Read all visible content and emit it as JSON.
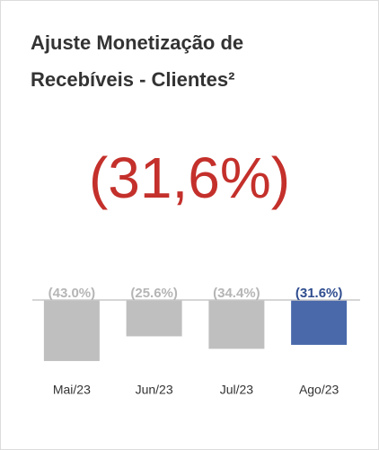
{
  "chart_data": {
    "type": "bar",
    "title": "Ajuste Monetização de Recebíveis - Clientes²",
    "headline": "(31,6%)",
    "categories": [
      "Mai/23",
      "Jun/23",
      "Jul/23",
      "Ago/23"
    ],
    "values": [
      -43.0,
      -25.6,
      -34.4,
      -31.6
    ],
    "value_labels": [
      "(43.0%)",
      "(25.6%)",
      "(34.4%)",
      "(31.6%)"
    ],
    "colors": [
      "#bfbfbf",
      "#bfbfbf",
      "#bfbfbf",
      "#4a69ab"
    ],
    "ylim": [
      -50,
      0
    ]
  }
}
